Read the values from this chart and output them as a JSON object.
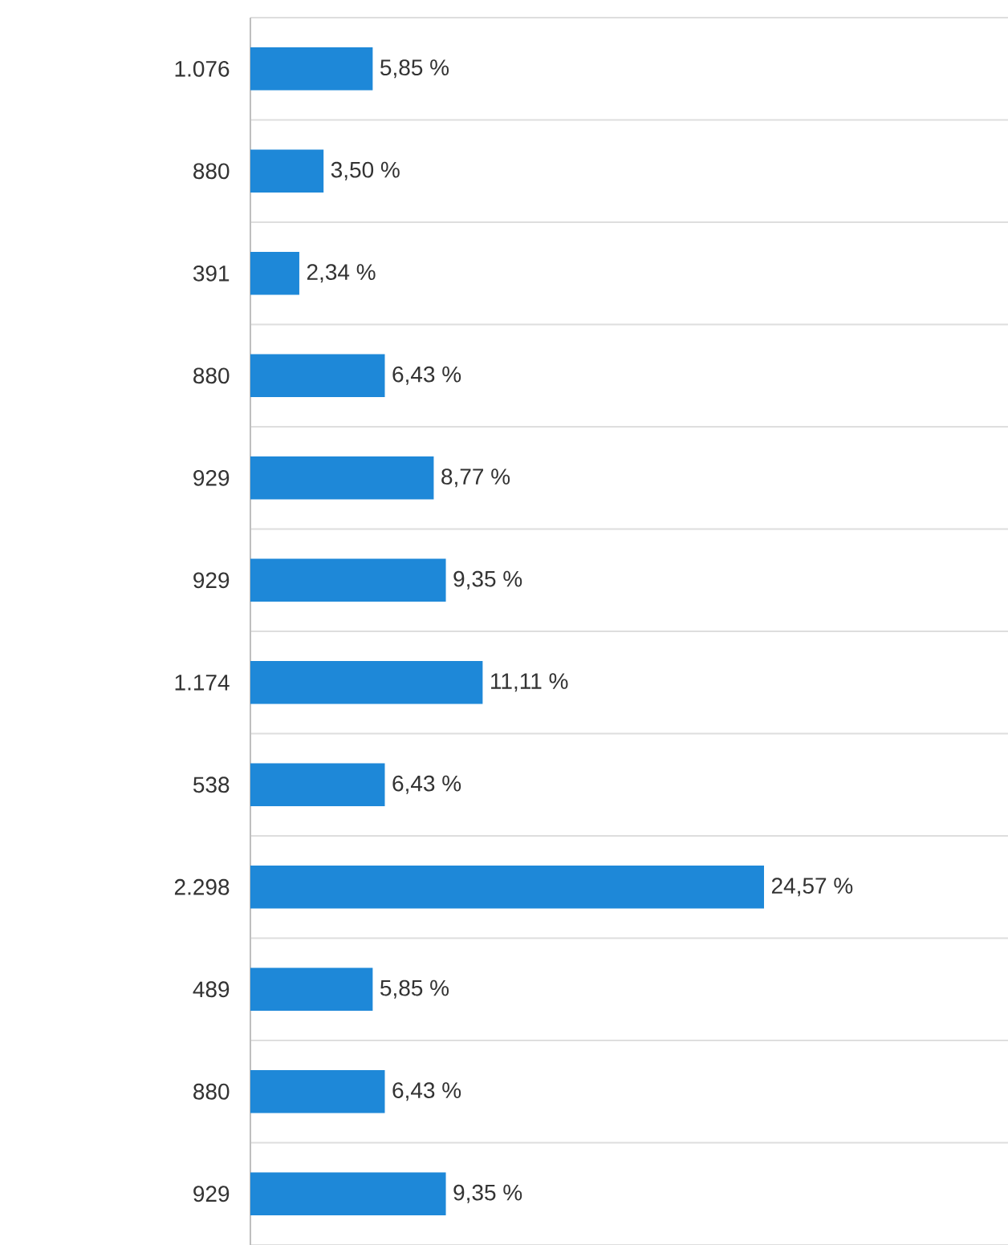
{
  "chart_data": {
    "type": "bar",
    "orientation": "horizontal",
    "grid": "y",
    "color": "#1e88d8",
    "categories": [
      "1.076",
      "880",
      "391",
      "880",
      "929",
      "929",
      "1.174",
      "538",
      "2.298",
      "489",
      "880",
      "929"
    ],
    "values": [
      5.85,
      3.5,
      2.34,
      6.43,
      8.77,
      9.35,
      11.11,
      6.43,
      24.57,
      5.85,
      6.43,
      9.35
    ],
    "value_labels": [
      "5,85 %",
      "3,50 %",
      "2,34 %",
      "6,43 %",
      "8,77 %",
      "9,35 %",
      "11,11 %",
      "6,43 %",
      "24,57 %",
      "5,85 %",
      "6,43 %",
      "9,35 %"
    ]
  }
}
